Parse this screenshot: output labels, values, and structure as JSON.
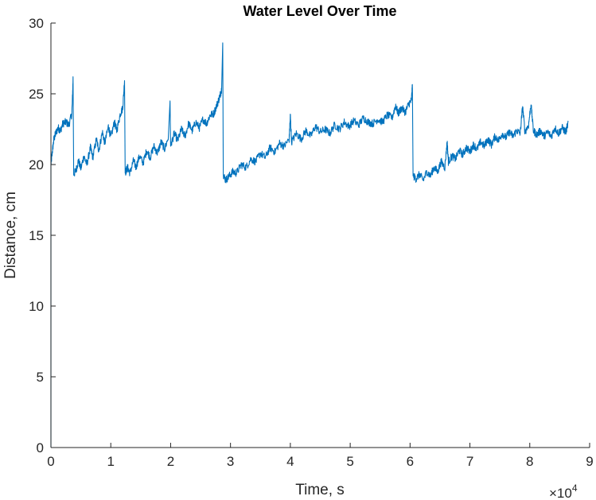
{
  "chart_data": {
    "type": "line",
    "title": "Water Level Over Time",
    "xlabel": "Time, s",
    "ylabel": "Distance, cm",
    "xlim": [
      0,
      9
    ],
    "ylim": [
      0,
      30
    ],
    "x_scale_exponent_label": "×10",
    "x_scale_exponent_power": "4",
    "xticks": [
      0,
      1,
      2,
      3,
      4,
      5,
      6,
      7,
      8,
      9
    ],
    "xtick_labels": [
      "0",
      "1",
      "2",
      "3",
      "4",
      "5",
      "6",
      "7",
      "8",
      "9"
    ],
    "yticks": [
      0,
      5,
      10,
      15,
      20,
      25,
      30
    ],
    "ytick_labels": [
      "0",
      "5",
      "10",
      "15",
      "20",
      "25",
      "30"
    ],
    "grid": false,
    "series_color": "#0072BD",
    "x_units_note": "x values in ×10^4 s",
    "series": [
      {
        "values_xy": [
          [
            0.0,
            0
          ],
          [
            0.0,
            20.0
          ],
          [
            0.02,
            20.8
          ],
          [
            0.05,
            21.8
          ],
          [
            0.08,
            22.2
          ],
          [
            0.12,
            22.6
          ],
          [
            0.16,
            22.4
          ],
          [
            0.2,
            22.9
          ],
          [
            0.25,
            23.0
          ],
          [
            0.3,
            22.8
          ],
          [
            0.35,
            23.6
          ],
          [
            0.37,
            26.1
          ],
          [
            0.38,
            19.3
          ],
          [
            0.42,
            19.6
          ],
          [
            0.46,
            20.3
          ],
          [
            0.5,
            19.7
          ],
          [
            0.55,
            20.6
          ],
          [
            0.6,
            20.0
          ],
          [
            0.66,
            21.2
          ],
          [
            0.7,
            20.5
          ],
          [
            0.76,
            21.8
          ],
          [
            0.8,
            21.0
          ],
          [
            0.86,
            22.3
          ],
          [
            0.9,
            21.5
          ],
          [
            0.96,
            22.7
          ],
          [
            1.0,
            21.9
          ],
          [
            1.06,
            23.0
          ],
          [
            1.1,
            22.4
          ],
          [
            1.16,
            23.6
          ],
          [
            1.2,
            24.0
          ],
          [
            1.23,
            26.0
          ],
          [
            1.24,
            19.4
          ],
          [
            1.28,
            19.8
          ],
          [
            1.32,
            19.4
          ],
          [
            1.38,
            20.3
          ],
          [
            1.42,
            19.8
          ],
          [
            1.48,
            20.6
          ],
          [
            1.54,
            20.1
          ],
          [
            1.6,
            21.0
          ],
          [
            1.66,
            20.5
          ],
          [
            1.72,
            21.3
          ],
          [
            1.78,
            20.8
          ],
          [
            1.84,
            21.6
          ],
          [
            1.9,
            21.1
          ],
          [
            1.96,
            21.9
          ],
          [
            1.99,
            24.5
          ],
          [
            2.0,
            21.3
          ],
          [
            2.06,
            22.2
          ],
          [
            2.12,
            21.7
          ],
          [
            2.18,
            22.5
          ],
          [
            2.24,
            22.0
          ],
          [
            2.3,
            22.9
          ],
          [
            2.36,
            22.4
          ],
          [
            2.42,
            23.0
          ],
          [
            2.48,
            22.6
          ],
          [
            2.54,
            23.2
          ],
          [
            2.6,
            22.9
          ],
          [
            2.66,
            23.5
          ],
          [
            2.72,
            23.6
          ],
          [
            2.78,
            24.3
          ],
          [
            2.82,
            24.8
          ],
          [
            2.85,
            25.3
          ],
          [
            2.87,
            28.6
          ],
          [
            2.88,
            19.3
          ],
          [
            2.92,
            18.9
          ],
          [
            2.98,
            19.2
          ],
          [
            3.04,
            19.5
          ],
          [
            3.1,
            19.4
          ],
          [
            3.18,
            20.0
          ],
          [
            3.26,
            19.8
          ],
          [
            3.34,
            20.4
          ],
          [
            3.42,
            20.2
          ],
          [
            3.5,
            20.8
          ],
          [
            3.58,
            20.5
          ],
          [
            3.66,
            21.2
          ],
          [
            3.74,
            20.9
          ],
          [
            3.82,
            21.5
          ],
          [
            3.9,
            21.3
          ],
          [
            3.98,
            21.8
          ],
          [
            4.0,
            23.5
          ],
          [
            4.02,
            21.6
          ],
          [
            4.1,
            22.2
          ],
          [
            4.18,
            21.8
          ],
          [
            4.26,
            22.4
          ],
          [
            4.34,
            22.0
          ],
          [
            4.42,
            22.7
          ],
          [
            4.5,
            22.3
          ],
          [
            4.58,
            22.5
          ],
          [
            4.66,
            22.2
          ],
          [
            4.74,
            22.8
          ],
          [
            4.82,
            22.5
          ],
          [
            4.9,
            23.0
          ],
          [
            4.98,
            22.7
          ],
          [
            5.06,
            23.1
          ],
          [
            5.14,
            22.8
          ],
          [
            5.22,
            23.3
          ],
          [
            5.3,
            23.0
          ],
          [
            5.38,
            22.9
          ],
          [
            5.46,
            23.2
          ],
          [
            5.54,
            23.0
          ],
          [
            5.62,
            23.5
          ],
          [
            5.7,
            23.3
          ],
          [
            5.76,
            24.2
          ],
          [
            5.8,
            23.6
          ],
          [
            5.86,
            24.0
          ],
          [
            5.92,
            23.7
          ],
          [
            5.98,
            24.3
          ],
          [
            6.02,
            24.5
          ],
          [
            6.04,
            25.6
          ],
          [
            6.05,
            19.2
          ],
          [
            6.1,
            19.0
          ],
          [
            6.16,
            19.3
          ],
          [
            6.22,
            18.9
          ],
          [
            6.28,
            19.5
          ],
          [
            6.34,
            19.2
          ],
          [
            6.4,
            19.8
          ],
          [
            6.46,
            19.5
          ],
          [
            6.52,
            20.2
          ],
          [
            6.58,
            19.8
          ],
          [
            6.62,
            21.6
          ],
          [
            6.64,
            20.2
          ],
          [
            6.7,
            20.6
          ],
          [
            6.76,
            20.4
          ],
          [
            6.82,
            21.0
          ],
          [
            6.88,
            20.7
          ],
          [
            6.94,
            21.2
          ],
          [
            7.0,
            20.9
          ],
          [
            7.06,
            21.4
          ],
          [
            7.12,
            21.1
          ],
          [
            7.18,
            21.6
          ],
          [
            7.24,
            21.3
          ],
          [
            7.3,
            21.8
          ],
          [
            7.36,
            21.4
          ],
          [
            7.42,
            22.0
          ],
          [
            7.48,
            21.7
          ],
          [
            7.54,
            22.2
          ],
          [
            7.6,
            21.9
          ],
          [
            7.66,
            22.3
          ],
          [
            7.72,
            22.0
          ],
          [
            7.78,
            22.4
          ],
          [
            7.84,
            22.2
          ],
          [
            7.88,
            24.1
          ],
          [
            7.92,
            22.3
          ],
          [
            7.98,
            22.8
          ],
          [
            8.02,
            24.3
          ],
          [
            8.06,
            22.4
          ],
          [
            8.12,
            22.1
          ],
          [
            8.18,
            22.4
          ],
          [
            8.24,
            22.0
          ],
          [
            8.3,
            22.3
          ],
          [
            8.36,
            22.0
          ],
          [
            8.42,
            22.6
          ],
          [
            8.48,
            22.2
          ],
          [
            8.54,
            22.6
          ],
          [
            8.6,
            22.3
          ],
          [
            8.64,
            22.9
          ]
        ]
      }
    ]
  }
}
